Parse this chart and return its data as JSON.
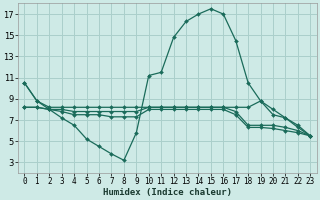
{
  "xlabel": "Humidex (Indice chaleur)",
  "background_color": "#ceeae6",
  "grid_color": "#aacfcb",
  "line_color": "#1a6b5a",
  "xlim": [
    -0.5,
    23.5
  ],
  "ylim": [
    2,
    18
  ],
  "yticks": [
    3,
    5,
    7,
    9,
    11,
    13,
    15,
    17
  ],
  "xticks": [
    0,
    1,
    2,
    3,
    4,
    5,
    6,
    7,
    8,
    9,
    10,
    11,
    12,
    13,
    14,
    15,
    16,
    17,
    18,
    19,
    20,
    21,
    22,
    23
  ],
  "series": [
    {
      "x": [
        0,
        1,
        2,
        3,
        4,
        5,
        6,
        7,
        8,
        9,
        10,
        11,
        12,
        13,
        14,
        15,
        16,
        17,
        18,
        19,
        20,
        21,
        22,
        23
      ],
      "y": [
        10.5,
        8.8,
        8.2,
        8.2,
        8.2,
        8.2,
        8.2,
        8.2,
        8.2,
        8.2,
        8.2,
        8.2,
        8.2,
        8.2,
        8.2,
        8.2,
        8.2,
        8.2,
        8.2,
        8.8,
        7.5,
        7.2,
        6.5,
        5.5
      ]
    },
    {
      "x": [
        0,
        1,
        2,
        3,
        4,
        5,
        6,
        7,
        8,
        9,
        10,
        11,
        12,
        13,
        14,
        15,
        16,
        17,
        18,
        19,
        20,
        21,
        22,
        23
      ],
      "y": [
        10.5,
        8.8,
        8.0,
        7.2,
        6.5,
        5.2,
        4.5,
        3.8,
        3.2,
        5.8,
        11.2,
        11.5,
        14.8,
        16.3,
        17.0,
        17.5,
        17.0,
        14.5,
        10.5,
        8.8,
        8.0,
        7.2,
        6.3,
        5.5
      ]
    },
    {
      "x": [
        0,
        1,
        2,
        3,
        4,
        5,
        6,
        7,
        8,
        9,
        10,
        11,
        12,
        13,
        14,
        15,
        16,
        17,
        18,
        19,
        20,
        21,
        22,
        23
      ],
      "y": [
        8.2,
        8.2,
        8.0,
        8.0,
        7.8,
        7.8,
        7.8,
        7.8,
        7.8,
        7.8,
        8.2,
        8.2,
        8.2,
        8.2,
        8.2,
        8.2,
        8.2,
        7.8,
        6.5,
        6.5,
        6.5,
        6.3,
        6.0,
        5.5
      ]
    },
    {
      "x": [
        0,
        1,
        2,
        3,
        4,
        5,
        6,
        7,
        8,
        9,
        10,
        11,
        12,
        13,
        14,
        15,
        16,
        17,
        18,
        19,
        20,
        21,
        22,
        23
      ],
      "y": [
        8.2,
        8.2,
        8.0,
        7.8,
        7.5,
        7.5,
        7.5,
        7.3,
        7.3,
        7.3,
        8.0,
        8.0,
        8.0,
        8.0,
        8.0,
        8.0,
        8.0,
        7.5,
        6.3,
        6.3,
        6.2,
        6.0,
        5.8,
        5.5
      ]
    }
  ]
}
